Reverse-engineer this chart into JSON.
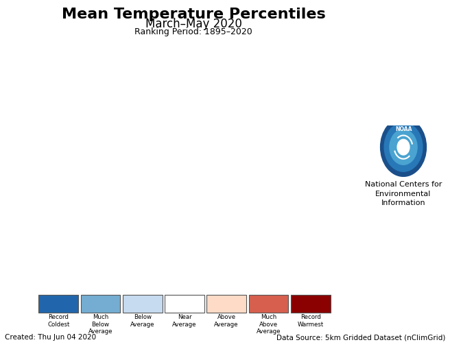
{
  "title": "Mean Temperature Percentiles",
  "subtitle": "March–May 2020",
  "ranking_period": "Ranking Period: 1895–2020",
  "created_text": "Created: Thu Jun 04 2020",
  "data_source_text": "Data Source: 5km Gridded Dataset (nClimGrid)",
  "noaa_text": "National Centers for\nEnvironmental\nInformation",
  "legend_colors": [
    "#2166ac",
    "#74add1",
    "#c6dbef",
    "#ffffff",
    "#fddbc7",
    "#d6604d",
    "#8b0000"
  ],
  "legend_labels": [
    "Record\nColdest",
    "Much\nBelow\nAverage",
    "Below\nAverage",
    "Near\nAverage",
    "Above\nAverage",
    "Much\nAbove\nAverage",
    "Record\nWarmest"
  ],
  "legend_edgecolor": "#555555",
  "title_fontsize": 16,
  "subtitle_fontsize": 12,
  "ranking_fontsize": 9,
  "footer_fontsize": 7.5,
  "noaa_label_fontsize": 8,
  "background_color": "#ffffff",
  "state_edge_color": "#1a1a1a",
  "state_linewidth": 0.6,
  "figsize": [
    6.56,
    5.09
  ],
  "dpi": 100,
  "map_extent": [
    -125.0,
    -66.5,
    24.0,
    50.0
  ],
  "noaa_circle_color": "#1a5fa8",
  "noaa_inner_color": "#3399cc",
  "state_percentile_colors": {
    "Washington": "#fddbc7",
    "Oregon": "#fddbc7",
    "California": "#fddbc7",
    "Nevada": "#d6604d",
    "Idaho": "#fddbc7",
    "Montana": "#fddbc7",
    "Wyoming": "#fddbc7",
    "Utah": "#d6604d",
    "Colorado": "#d6604d",
    "Arizona": "#d6604d",
    "New Mexico": "#d6604d",
    "North Dakota": "#ffffff",
    "South Dakota": "#fddbc7",
    "Nebraska": "#fddbc7",
    "Kansas": "#fddbc7",
    "Oklahoma": "#d6604d",
    "Texas": "#d6604d",
    "Minnesota": "#c6dbef",
    "Iowa": "#ffffff",
    "Missouri": "#fddbc7",
    "Arkansas": "#d6604d",
    "Louisiana": "#d6604d",
    "Wisconsin": "#c6dbef",
    "Michigan": "#ffffff",
    "Illinois": "#fddbc7",
    "Indiana": "#fddbc7",
    "Ohio": "#fddbc7",
    "Kentucky": "#fddbc7",
    "Tennessee": "#fddbc7",
    "Mississippi": "#d6604d",
    "Alabama": "#d6604d",
    "Georgia": "#d6604d",
    "Florida": "#d6604d",
    "South Carolina": "#fddbc7",
    "North Carolina": "#fddbc7",
    "Virginia": "#fddbc7",
    "West Virginia": "#ffffff",
    "Maryland": "#fddbc7",
    "Delaware": "#fddbc7",
    "New Jersey": "#fddbc7",
    "Pennsylvania": "#fddbc7",
    "New York": "#fddbc7",
    "Connecticut": "#fddbc7",
    "Rhode Island": "#fddbc7",
    "Massachusetts": "#fddbc7",
    "Vermont": "#ffffff",
    "New Hampshire": "#ffffff",
    "Maine": "#fddbc7",
    "District of Columbia": "#fddbc7"
  }
}
